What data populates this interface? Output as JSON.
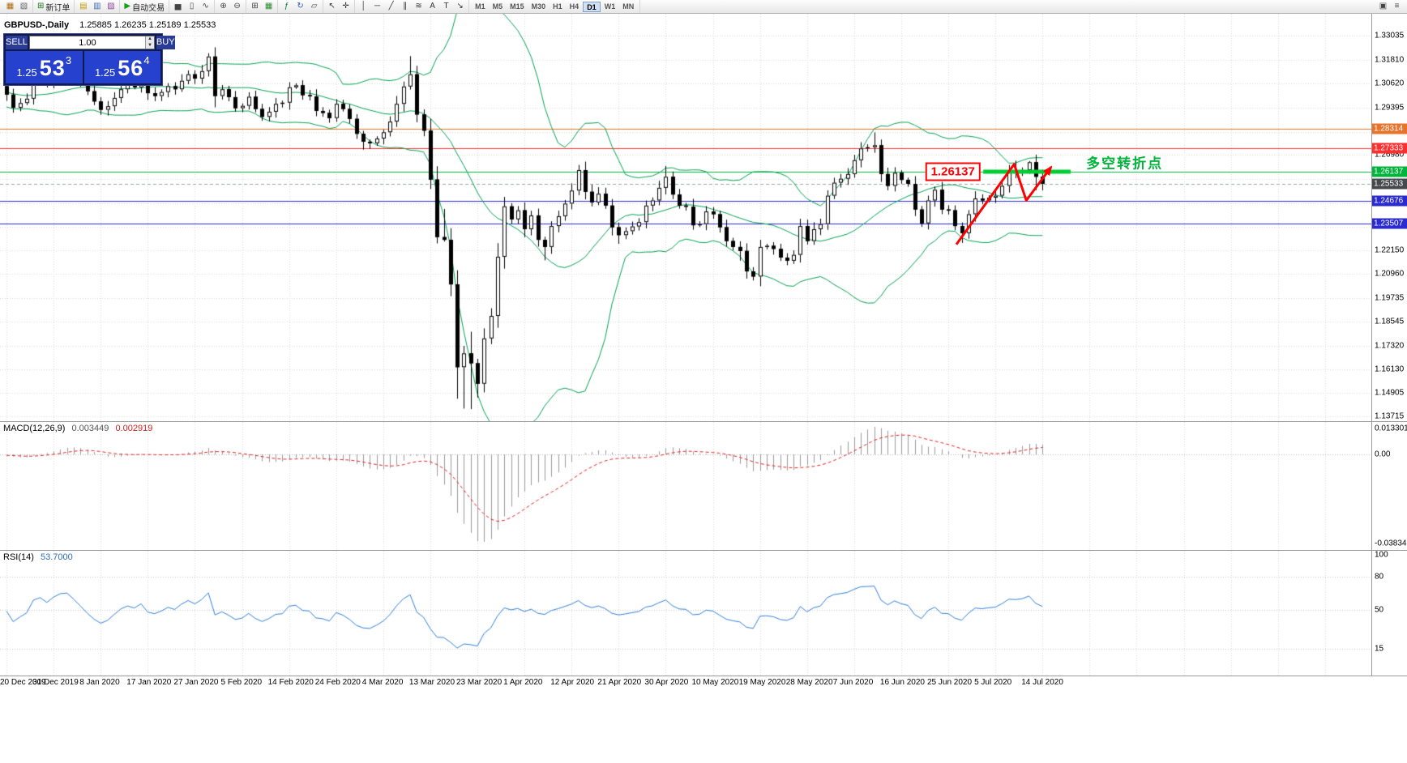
{
  "toolbar": {
    "groups": [
      {
        "name": "charts",
        "items": [
          {
            "name": "new-chart",
            "glyph": "▦",
            "color": "#b06a10"
          },
          {
            "name": "profiles",
            "glyph": "▧",
            "color": "#666666"
          }
        ]
      },
      {
        "name": "order",
        "items": [
          {
            "name": "new-order",
            "glyph": "⊞",
            "color": "#1a7a1a",
            "label": "新订单"
          }
        ]
      },
      {
        "name": "panels",
        "items": [
          {
            "name": "market-watch",
            "glyph": "▤",
            "color": "#c09a00"
          },
          {
            "name": "data-window",
            "glyph": "▥",
            "color": "#3a6ab0"
          },
          {
            "name": "navigator",
            "glyph": "▨",
            "color": "#8a4aa0"
          }
        ]
      },
      {
        "name": "trading",
        "items": [
          {
            "name": "auto-trading",
            "glyph": "▶",
            "color": "#18a018",
            "label": "自动交易"
          }
        ]
      },
      {
        "name": "chart-types",
        "items": [
          {
            "name": "bar-chart",
            "glyph": "▅",
            "color": "#444444"
          },
          {
            "name": "candlestick-chart",
            "glyph": "▯",
            "color": "#444444"
          },
          {
            "name": "line-chart",
            "glyph": "∿",
            "color": "#444444"
          }
        ]
      },
      {
        "name": "zoom",
        "items": [
          {
            "name": "zoom-in",
            "glyph": "⊕",
            "color": "#444444"
          },
          {
            "name": "zoom-out",
            "glyph": "⊖",
            "color": "#444444"
          }
        ]
      },
      {
        "name": "layout",
        "items": [
          {
            "name": "tile-windows",
            "glyph": "⊞",
            "color": "#444444"
          },
          {
            "name": "grid",
            "glyph": "▦",
            "color": "#2e8b2e"
          }
        ]
      },
      {
        "name": "tools",
        "items": [
          {
            "name": "indicators",
            "glyph": "ƒ",
            "color": "#0b7a3a"
          },
          {
            "name": "period-refresh",
            "glyph": "↻",
            "color": "#2a5ab0"
          },
          {
            "name": "templates",
            "glyph": "▱",
            "color": "#444444"
          }
        ]
      },
      {
        "name": "cursor-tools",
        "items": [
          {
            "name": "cursor",
            "glyph": "↖",
            "color": "#333333"
          },
          {
            "name": "crosshair",
            "glyph": "✛",
            "color": "#333333"
          }
        ]
      },
      {
        "name": "draw-tools",
        "items": [
          {
            "name": "vertical-line",
            "glyph": "│",
            "color": "#333333"
          },
          {
            "name": "horizontal-line",
            "glyph": "─",
            "color": "#333333"
          },
          {
            "name": "trendline",
            "glyph": "╱",
            "color": "#333333"
          },
          {
            "name": "channel",
            "glyph": "∥",
            "color": "#333333"
          },
          {
            "name": "fibonacci",
            "glyph": "≋",
            "color": "#333333"
          },
          {
            "name": "text",
            "glyph": "A",
            "color": "#333333"
          },
          {
            "name": "label",
            "glyph": "T",
            "color": "#333333"
          },
          {
            "name": "arrows",
            "glyph": "↘",
            "color": "#333333"
          }
        ]
      }
    ],
    "timeframes": [
      "M1",
      "M5",
      "M15",
      "M30",
      "H1",
      "H4",
      "D1",
      "W1",
      "MN"
    ],
    "active_timeframe": "D1",
    "right_items": [
      {
        "name": "arrange-windows",
        "glyph": "▣",
        "color": "#444444"
      },
      {
        "name": "toolbar-menu",
        "glyph": "≡",
        "color": "#444444"
      }
    ]
  },
  "header": {
    "symbol": "GBPUSD-,Daily",
    "ohlc": "1.25885 1.26235 1.25189 1.25533"
  },
  "trade_panel": {
    "sell_label": "SELL",
    "buy_label": "BUY",
    "volume": "1.00",
    "bid": {
      "small": "1.25",
      "big": "53",
      "sup": "3"
    },
    "ask": {
      "small": "1.25",
      "big": "56",
      "sup": "4"
    }
  },
  "levels": [
    {
      "price": 1.28314,
      "label": "1.28314",
      "color": "#e8732a"
    },
    {
      "price": 1.27333,
      "label": "1.27333",
      "color": "#ff2f2f"
    },
    {
      "price": 1.26137,
      "label": "1.26137",
      "color": "#00b43c"
    },
    {
      "price": 1.24676,
      "label": "1.24676",
      "color": "#2a2ad0"
    },
    {
      "price": 1.23507,
      "label": "1.23507",
      "color": "#2a2ad0"
    }
  ],
  "current_price": {
    "price": 1.25533,
    "label": "1.25533",
    "badge_color": "#45494d",
    "line_color": "#9aa0a6"
  },
  "price_axis": {
    "labels": [
      {
        "price": 1.33035,
        "text": "1.33035"
      },
      {
        "price": 1.3181,
        "text": "1.31810"
      },
      {
        "price": 1.3062,
        "text": "1.30620"
      },
      {
        "price": 1.29395,
        "text": "1.29395"
      },
      {
        "price": 1.2698,
        "text": "1.26980"
      },
      {
        "price": 1.2215,
        "text": "1.22150"
      },
      {
        "price": 1.2096,
        "text": "1.20960"
      },
      {
        "price": 1.19735,
        "text": "1.19735"
      },
      {
        "price": 1.18545,
        "text": "1.18545"
      },
      {
        "price": 1.1732,
        "text": "1.17320"
      },
      {
        "price": 1.1613,
        "text": "1.16130"
      },
      {
        "price": 1.14905,
        "text": "1.14905"
      },
      {
        "price": 1.13715,
        "text": "1.13715"
      }
    ],
    "grid_prices": [
      1.33035,
      1.3181,
      1.3062,
      1.29395,
      1.2817,
      1.2698,
      1.25755,
      1.2453,
      1.2334,
      1.2215,
      1.2096,
      1.19735,
      1.18545,
      1.1732,
      1.1613,
      1.14905,
      1.13715
    ]
  },
  "time_axis": {
    "dates": [
      "20 Dec 2019",
      "30 Dec 2019",
      "8 Jan 2020",
      "17 Jan 2020",
      "27 Jan 2020",
      "5 Feb 2020",
      "14 Feb 2020",
      "24 Feb 2020",
      "4 Mar 2020",
      "13 Mar 2020",
      "23 Mar 2020",
      "1 Apr 2020",
      "12 Apr 2020",
      "21 Apr 2020",
      "30 Apr 2020",
      "10 May 2020",
      "19 May 2020",
      "28 May 2020",
      "7 Jun 2020",
      "16 Jun 2020",
      "25 Jun 2020",
      "5 Jul 2020",
      "14 Jul 2020"
    ]
  },
  "macd": {
    "name": "MACD(12,26,9)",
    "value_main": "0.003449",
    "value_signal": "0.002919",
    "scale_top": "0.013301",
    "scale_zero": "0.00",
    "scale_bottom": "-0.038343"
  },
  "rsi": {
    "name": "RSI(14)",
    "value": "53.7000",
    "scale_labels": [
      {
        "v": 100,
        "text": "100"
      },
      {
        "v": 80,
        "text": "80"
      },
      {
        "v": 50,
        "text": "50"
      },
      {
        "v": 15,
        "text": "15"
      }
    ]
  },
  "annotations": {
    "price_callout": {
      "text": "1.26137",
      "price": 1.26137,
      "x_right_bar": 144.8
    },
    "note": {
      "text": "多空转折点",
      "bar": 160.5,
      "price": 1.2665
    },
    "support_segment": {
      "price": 1.26137,
      "bar_start": 145.2,
      "bar_end": 158.2,
      "color": "#00cc33",
      "width": 5
    },
    "trend_arrow": {
      "color": "#ff0000",
      "points": [
        {
          "bar": 141.2,
          "price": 1.2245
        },
        {
          "bar": 149.8,
          "price": 1.2652
        },
        {
          "bar": 151.6,
          "price": 1.2468
        },
        {
          "bar": 155.3,
          "price": 1.2638
        }
      ]
    }
  },
  "chart_data": {
    "type": "candlestick",
    "symbol": "GBPUSD",
    "timeframe": "Daily",
    "price_top": 1.3415,
    "price_bottom": 1.1348,
    "indicators": [
      "Bollinger Bands(20,2)",
      "MACD(12,26,9)",
      "RSI(14)"
    ],
    "last_bar_ohlc": {
      "open": 1.25885,
      "high": 1.26235,
      "low": 1.25189,
      "close": 1.25533
    },
    "pre_closes": [
      1.2915,
      1.2945,
      1.293,
      1.2965,
      1.299,
      1.2975,
      1.301,
      1.3035,
      1.302,
      1.3055,
      1.308,
      1.3065,
      1.3095,
      1.312,
      1.3105,
      1.3135,
      1.315,
      1.313,
      1.311,
      1.3125,
      1.3095,
      1.307,
      1.3085,
      1.3055,
      1.303,
      1.3045,
      1.3015,
      1.2995,
      1.301,
      1.2985,
      1.296,
      1.2975,
      1.295,
      1.297,
      1.299,
      1.301,
      1.303,
      1.305,
      1.3045,
      1.3048
    ],
    "closes": [
      1.3005,
      1.2938,
      1.2962,
      1.2984,
      1.3072,
      1.3094,
      1.3066,
      1.3112,
      1.3146,
      1.3152,
      1.3118,
      1.3075,
      1.3022,
      1.297,
      1.2928,
      1.2946,
      1.2988,
      1.3032,
      1.3058,
      1.3042,
      1.3078,
      1.3012,
      1.2998,
      1.3018,
      1.3048,
      1.3032,
      1.3075,
      1.3108,
      1.3086,
      1.3124,
      1.3198,
      1.2998,
      1.3032,
      1.2992,
      1.2936,
      1.2948,
      1.2994,
      1.2932,
      1.2892,
      1.2918,
      1.2958,
      1.2964,
      1.3042,
      1.3052,
      1.3002,
      1.2996,
      1.2922,
      1.2912,
      1.2886,
      1.2958,
      1.2932,
      1.2882,
      1.2806,
      1.2766,
      1.2758,
      1.2782,
      1.2814,
      1.2868,
      1.2958,
      1.3046,
      1.3108,
      1.2904,
      1.2822,
      1.2574,
      1.2282,
      1.2268,
      1.2042,
      1.1622,
      1.1692,
      1.1642,
      1.1538,
      1.1768,
      1.1882,
      1.2182,
      1.2438,
      1.2372,
      1.2418,
      1.2322,
      1.2392,
      1.2268,
      1.2232,
      1.2338,
      1.2388,
      1.2452,
      1.2518,
      1.2622,
      1.2512,
      1.2458,
      1.2502,
      1.2442,
      1.2332,
      1.2292,
      1.2312,
      1.2336,
      1.2358,
      1.2442,
      1.2468,
      1.2532,
      1.2588,
      1.2498,
      1.2442,
      1.2436,
      1.2342,
      1.2348,
      1.2412,
      1.2398,
      1.2332,
      1.2262,
      1.2232,
      1.2212,
      1.2108,
      1.2082,
      1.2232,
      1.2238,
      1.2222,
      1.2178,
      1.2162,
      1.2192,
      1.2338,
      1.2262,
      1.2322,
      1.2348,
      1.2492,
      1.2558,
      1.2578,
      1.2602,
      1.2672,
      1.2732,
      1.2738,
      1.2748,
      1.2602,
      1.2542,
      1.2608,
      1.2572,
      1.2552,
      1.2422,
      1.2352,
      1.2468,
      1.2522,
      1.2422,
      1.2418,
      1.2338,
      1.2302,
      1.2398,
      1.2478,
      1.2468,
      1.2482,
      1.2492,
      1.2542,
      1.2612,
      1.2608,
      1.2622,
      1.2662,
      1.2588,
      1.25533
    ],
    "wick_overrides": {
      "9": {
        "h": 1.3181
      },
      "30": {
        "h": 1.3215
      },
      "38": {
        "l": 1.2872
      },
      "53": {
        "l": 1.2726
      },
      "60": {
        "h": 1.32
      },
      "63": {
        "l": 1.2526
      },
      "64": {
        "l": 1.225
      },
      "65": {
        "h": 1.2425
      },
      "66": {
        "l": 1.1982
      },
      "67": {
        "l": 1.1462
      },
      "68": {
        "l": 1.1412
      },
      "69": {
        "l": 1.1409,
        "h": 1.1802
      },
      "70": {
        "l": 1.1468
      },
      "74": {
        "h": 1.2486
      },
      "80": {
        "l": 1.2164
      },
      "85": {
        "h": 1.2648
      },
      "91": {
        "l": 1.2248
      },
      "98": {
        "h": 1.2643
      },
      "109": {
        "l": 1.2162
      },
      "111": {
        "l": 1.2062
      },
      "129": {
        "h": 1.2813
      },
      "142": {
        "l": 1.2252
      },
      "150": {
        "h": 1.267
      },
      "152": {
        "h": 1.2668
      },
      "153": {
        "l": 1.252
      },
      "154": {
        "o": 1.25885,
        "h": 1.26235,
        "l": 1.25189
      }
    }
  }
}
